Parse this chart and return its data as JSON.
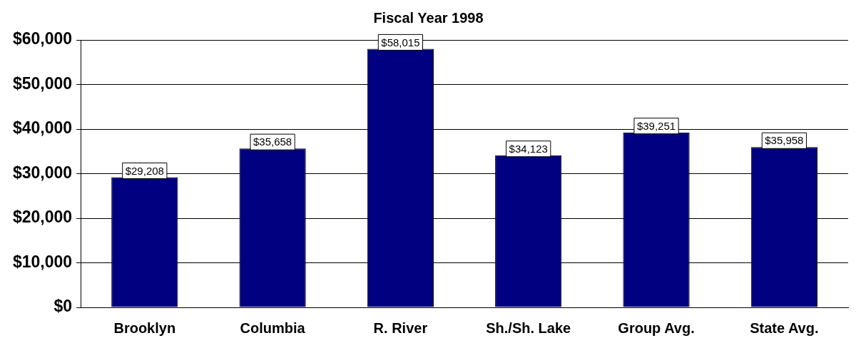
{
  "chart_data": {
    "type": "bar",
    "title": "Fiscal Year 1998",
    "categories": [
      "Brooklyn",
      "Columbia",
      "R. River",
      "Sh./Sh. Lake",
      "Group Avg.",
      "State Avg."
    ],
    "values": [
      29208,
      35658,
      58015,
      34123,
      39251,
      35958
    ],
    "value_labels": [
      "$29,208",
      "$35,658",
      "$58,015",
      "$34,123",
      "$39,251",
      "$35,958"
    ],
    "color": "#000080",
    "ylim": [
      0,
      60000
    ],
    "yticks": [
      {
        "value": 0,
        "label": "$0"
      },
      {
        "value": 10000,
        "label": "$10,000"
      },
      {
        "value": 20000,
        "label": "$20,000"
      },
      {
        "value": 30000,
        "label": "$30,000"
      },
      {
        "value": 40000,
        "label": "$40,000"
      },
      {
        "value": 50000,
        "label": "$50,000"
      },
      {
        "value": 60000,
        "label": "$60,000"
      }
    ],
    "grid": "y",
    "legend": false
  }
}
